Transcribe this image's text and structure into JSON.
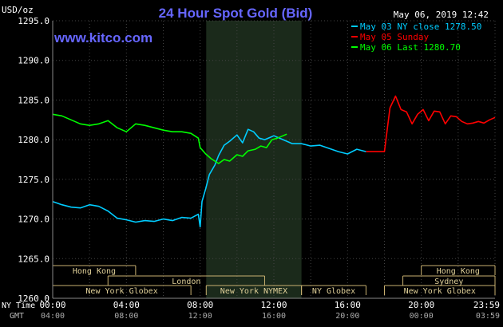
{
  "chart_data": {
    "type": "line",
    "title": "24 Hour Spot Gold (Bid)",
    "watermark": "www.kitco.com",
    "ylabel": "USD/oz",
    "timestamp": "May 06, 2019 12:42",
    "ylim": [
      1260,
      1295
    ],
    "y_ticks": [
      "1295.0",
      "1290.0",
      "1285.0",
      "1280.0",
      "1275.0",
      "1270.0",
      "1265.0",
      "1260.0"
    ],
    "x_axis_labels": {
      "row1_caption": "NY Time",
      "row2_caption": "GMT",
      "ny_time": [
        "00:00",
        "04:00",
        "08:00",
        "12:00",
        "16:00",
        "20:00",
        "23:59"
      ],
      "gmt": [
        "04:00",
        "08:00",
        "12:00",
        "16:00",
        "20:00",
        "00:00",
        "03:59"
      ]
    },
    "legend": [
      {
        "label": "May 03 NY close 1278.50",
        "color": "#00ccff"
      },
      {
        "label": "May 05 Sunday",
        "color": "#ff0000"
      },
      {
        "label": "May 06 Last 1280.70",
        "color": "#00ff00"
      }
    ],
    "markets": [
      {
        "name": "Hong Kong",
        "start": 0.0,
        "end": 4.5,
        "row": 0
      },
      {
        "name": "London",
        "start": 3.0,
        "end": 11.5,
        "row": 1
      },
      {
        "name": "New York Globex",
        "start": 0.0,
        "end": 7.5,
        "row": 2
      },
      {
        "name": "New York NYMEX",
        "start": 8.33,
        "end": 13.5,
        "row": 2
      },
      {
        "name": "NY Globex",
        "start": 13.5,
        "end": 17.0,
        "row": 2
      },
      {
        "name": "Hong Kong",
        "start": 20.0,
        "end": 24.0,
        "row": 0
      },
      {
        "name": "Sydney",
        "start": 19.0,
        "end": 24.0,
        "row": 1
      },
      {
        "name": "New York Globex",
        "start": 18.0,
        "end": 24.0,
        "row": 2
      }
    ],
    "shaded_region": [
      8.33,
      13.5
    ],
    "series": [
      {
        "name": "May 03",
        "color": "#00ccff",
        "x": [
          0,
          0.5,
          1,
          1.5,
          2,
          2.5,
          3,
          3.5,
          4,
          4.5,
          5,
          5.5,
          6,
          6.5,
          7,
          7.5,
          7.9,
          8,
          8.1,
          8.3,
          8.5,
          8.8,
          9,
          9.3,
          9.6,
          10,
          10.3,
          10.6,
          10.9,
          11.2,
          11.5,
          11.8,
          12,
          12.5,
          13,
          13.5,
          14,
          14.5,
          15,
          15.5,
          16,
          16.5,
          17
        ],
        "y": [
          1272.2,
          1271.8,
          1271.5,
          1271.4,
          1271.8,
          1271.6,
          1271.0,
          1270.1,
          1269.9,
          1269.6,
          1269.8,
          1269.7,
          1270.0,
          1269.8,
          1270.2,
          1270.1,
          1270.6,
          1269.0,
          1272.2,
          1273.8,
          1275.6,
          1276.8,
          1278.0,
          1279.3,
          1279.8,
          1280.6,
          1279.6,
          1281.3,
          1281.0,
          1280.2,
          1280.0,
          1280.3,
          1280.5,
          1280.0,
          1279.5,
          1279.5,
          1279.2,
          1279.3,
          1278.9,
          1278.5,
          1278.2,
          1278.8,
          1278.5
        ]
      },
      {
        "name": "May 05 Sunday",
        "color": "#ff0000",
        "x": [
          17,
          17.5,
          18,
          18.3,
          18.6,
          18.9,
          19.2,
          19.5,
          19.8,
          20.1,
          20.4,
          20.7,
          21,
          21.3,
          21.6,
          21.9,
          22.2,
          22.5,
          22.8,
          23.1,
          23.4,
          23.7,
          24
        ],
        "y": [
          1278.5,
          1278.5,
          1278.5,
          1284.0,
          1285.5,
          1283.8,
          1283.5,
          1282.0,
          1283.2,
          1283.8,
          1282.4,
          1283.6,
          1283.5,
          1282.0,
          1283.0,
          1282.9,
          1282.3,
          1282.0,
          1282.1,
          1282.3,
          1282.1,
          1282.5,
          1282.8
        ]
      },
      {
        "name": "May 06",
        "color": "#00ff00",
        "x": [
          0,
          0.5,
          1,
          1.5,
          2,
          2.5,
          3,
          3.5,
          4,
          4.5,
          5,
          5.5,
          6,
          6.5,
          7,
          7.5,
          7.9,
          8,
          8.3,
          8.6,
          9,
          9.3,
          9.6,
          10,
          10.3,
          10.6,
          11,
          11.3,
          11.6,
          11.9,
          12.2,
          12.5,
          12.7
        ],
        "y": [
          1283.2,
          1283.0,
          1282.5,
          1282.0,
          1281.8,
          1282.0,
          1282.4,
          1281.5,
          1281.0,
          1282.0,
          1281.8,
          1281.5,
          1281.2,
          1281.0,
          1281.0,
          1280.8,
          1280.2,
          1279.0,
          1278.2,
          1277.6,
          1277.0,
          1277.5,
          1277.3,
          1278.1,
          1277.9,
          1278.6,
          1278.8,
          1279.2,
          1279.0,
          1280.0,
          1280.2,
          1280.5,
          1280.7
        ]
      }
    ]
  }
}
